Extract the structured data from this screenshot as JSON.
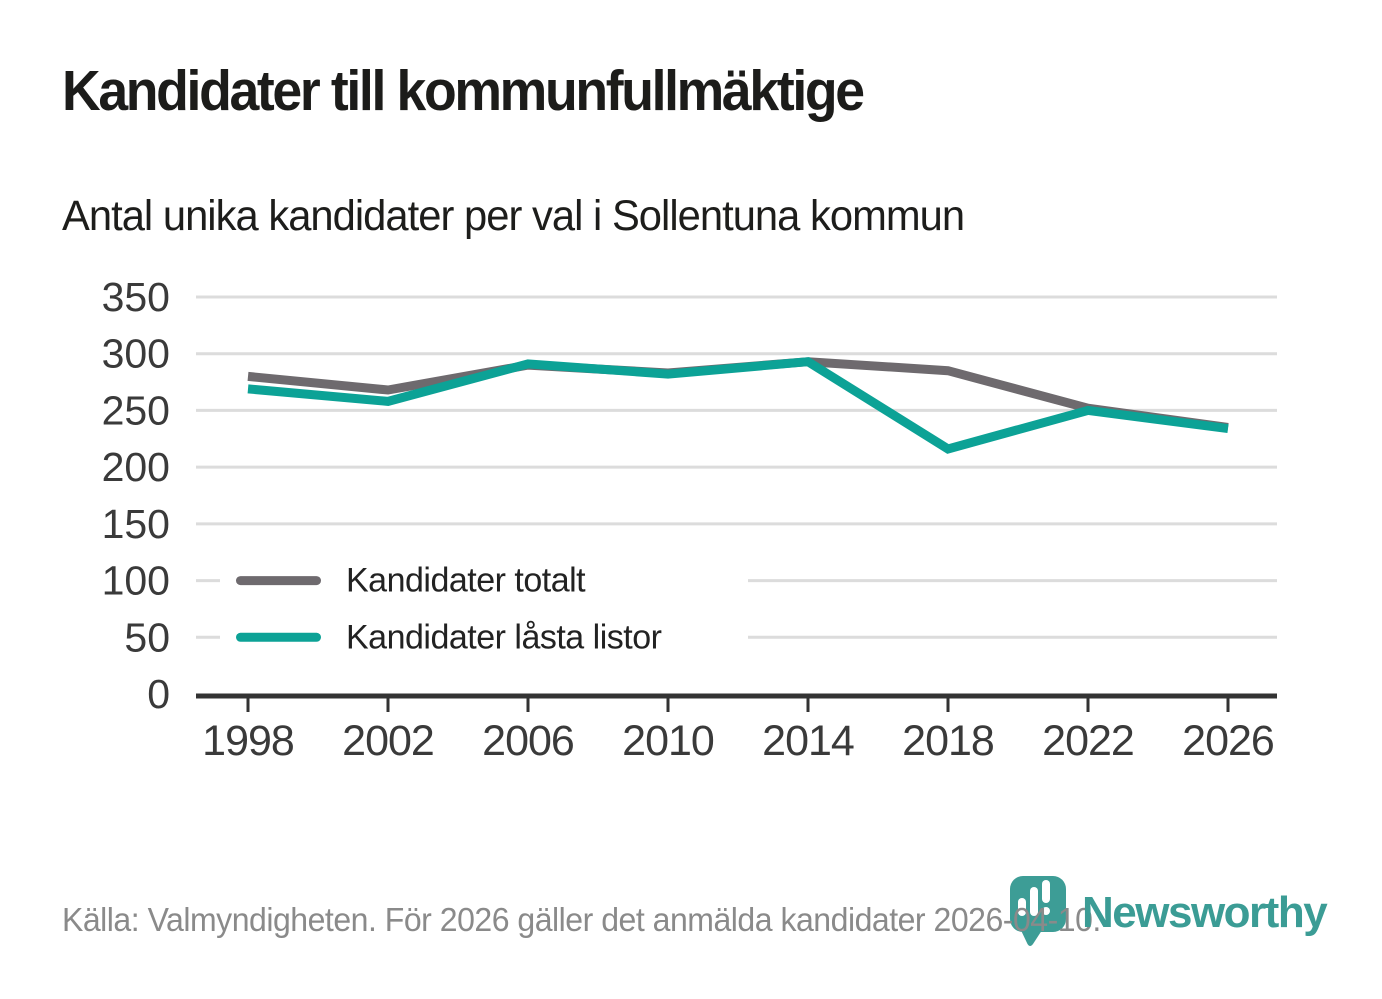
{
  "title": "Kandidater till kommunfullmäktige",
  "subtitle": "Antal unika kandidater per val i Sollentuna kommun",
  "footer": {
    "source_text": "Källa: Valmyndigheten. För 2026 gäller det anmälda kandidater 2026-04-10."
  },
  "branding": {
    "logo_text": "Newsworthy",
    "logo_icon": "newsworthy-pin-bar-chart-icon"
  },
  "colors": {
    "total_line": "#6e6a6e",
    "locked_line": "#0ca296",
    "grid": "#dcdcdc",
    "axis": "#333333",
    "tick_label": "#3a3a3a",
    "legend_text": "#222222",
    "title_text": "#1c1c1a",
    "footer_text": "#8a8a8a",
    "logo_teal": "#3d9d96"
  },
  "chart_data": {
    "type": "line",
    "title": "Kandidater till kommunfullmäktige",
    "subtitle": "Antal unika kandidater per val i Sollentuna kommun",
    "x": [
      1998,
      2002,
      2006,
      2010,
      2014,
      2018,
      2022,
      2026
    ],
    "x_tick_labels": [
      "1998",
      "2002",
      "2006",
      "2010",
      "2014",
      "2018",
      "2022",
      "2026"
    ],
    "y_ticks": [
      0,
      50,
      100,
      150,
      200,
      250,
      300,
      350
    ],
    "ylim": [
      0,
      350
    ],
    "grid": "horizontal",
    "legend_position": "inside-left",
    "series": [
      {
        "name": "Kandidater totalt",
        "color": "#6e6a6e",
        "values": [
          280,
          268,
          290,
          283,
          293,
          285,
          252,
          235
        ]
      },
      {
        "name": "Kandidater låsta listor",
        "color": "#0ca296",
        "values": [
          269,
          258,
          291,
          282,
          293,
          216,
          250,
          234
        ]
      }
    ]
  }
}
